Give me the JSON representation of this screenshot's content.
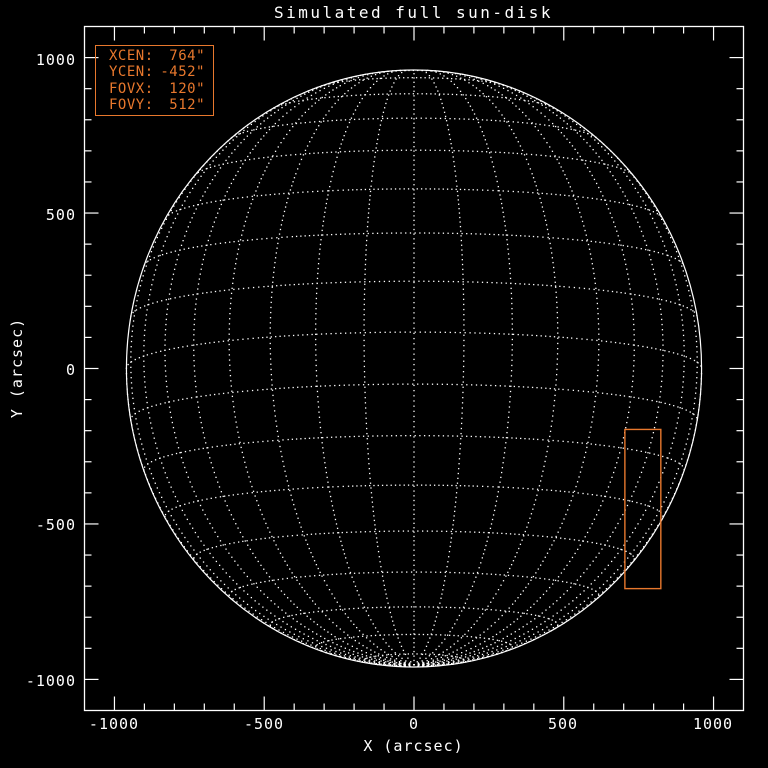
{
  "title": "Simulated full sun-disk",
  "axes": {
    "x": {
      "label": "X (arcsec)",
      "tick_labels": [
        "-1000",
        "-500",
        "0",
        "500",
        "1000"
      ]
    },
    "y": {
      "label": "Y (arcsec)",
      "tick_labels": [
        "1000",
        "500",
        "0",
        "-500",
        "-1000"
      ]
    }
  },
  "fov_readout": {
    "items": [
      {
        "label": "XCEN:",
        "value": "764\""
      },
      {
        "label": "YCEN:",
        "value": "-452\""
      },
      {
        "label": "FOVX:",
        "value": "120\""
      },
      {
        "label": "FOVY:",
        "value": "512\""
      }
    ]
  },
  "colors": {
    "background": "#000000",
    "foreground": "#ffffff",
    "accent": "#e8782d"
  },
  "chart_data": {
    "type": "line",
    "title": "Simulated full sun-disk",
    "xlabel": "X (arcsec)",
    "ylabel": "Y (arcsec)",
    "xlim": [
      -1100,
      1100
    ],
    "ylim": [
      -1100,
      1100
    ],
    "x_major_ticks": [
      -1000,
      -500,
      0,
      500,
      1000
    ],
    "y_major_ticks": [
      -1000,
      -500,
      0,
      500,
      1000
    ],
    "minor_tick_step": 100,
    "grid": false,
    "legend": "none",
    "sun": {
      "radius_arcsec": 960,
      "grid_step_deg": 10,
      "lat_range_deg": [
        -80,
        80
      ],
      "b0_deg": -7,
      "grid_line_style": "dotted",
      "limb_style": "solid"
    },
    "fov_box": {
      "xcen_arcsec": 764,
      "ycen_arcsec": -452,
      "fovx_arcsec": 120,
      "fovy_arcsec": 512,
      "x_range": [
        704,
        824
      ],
      "y_range": [
        -708,
        -196
      ]
    }
  }
}
